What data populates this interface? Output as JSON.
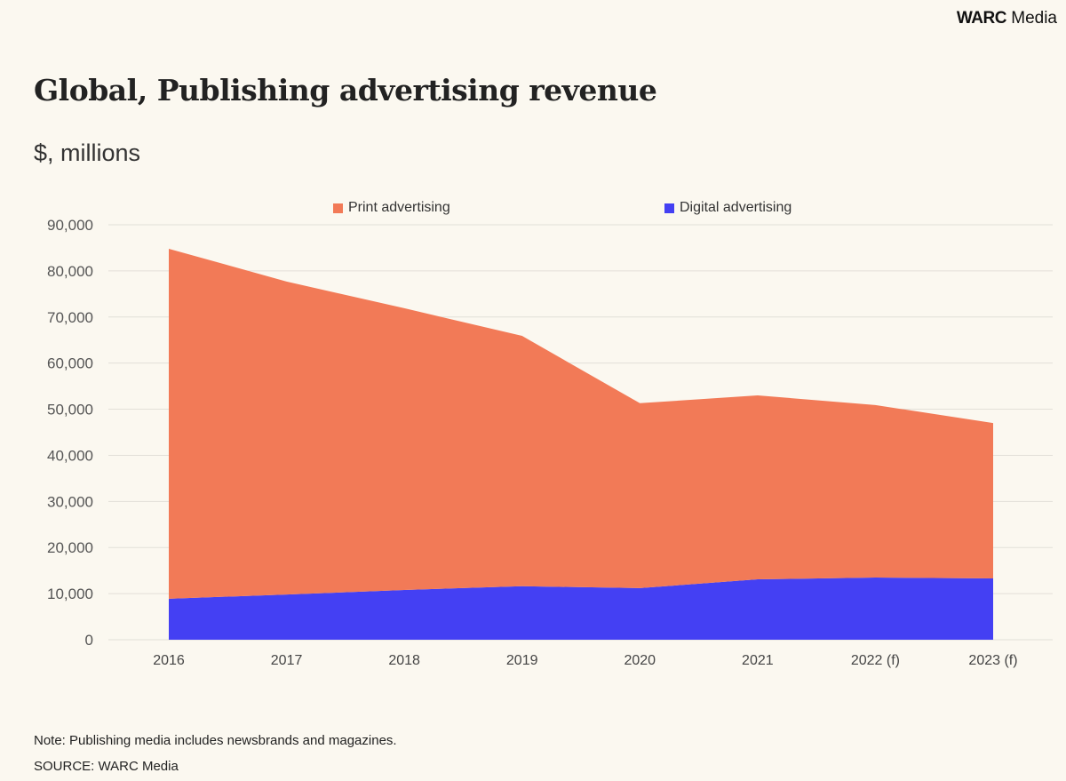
{
  "brand": {
    "bold": "WARC",
    "regular": "Media"
  },
  "header": {
    "title": "Global, Publishing advertising revenue",
    "subtitle": "$, millions"
  },
  "footer": {
    "note": "Note: Publishing media includes newsbrands and magazines.",
    "source": "SOURCE: WARC Media"
  },
  "colors": {
    "print": "#f27a57",
    "digital": "#4440f3",
    "grid": "#e2dfd8",
    "background": "#fbf8f0"
  },
  "chart_data": {
    "type": "area",
    "stacked": true,
    "title": "Global, Publishing advertising revenue",
    "ylabel": "$, millions",
    "xlabel": "",
    "categories": [
      "2016",
      "2017",
      "2018",
      "2019",
      "2020",
      "2021",
      "2022 (f)",
      "2023 (f)"
    ],
    "series": [
      {
        "name": "Digital advertising",
        "color": "#4440f3",
        "values": [
          8900,
          9800,
          10800,
          11600,
          11200,
          13100,
          13500,
          13300
        ]
      },
      {
        "name": "Print advertising",
        "color": "#f27a57",
        "values": [
          75900,
          67900,
          61100,
          54300,
          40100,
          39900,
          37400,
          33700
        ]
      }
    ],
    "legend_order": [
      "Print advertising",
      "Digital advertising"
    ],
    "legend_position": "top-center",
    "ylim": [
      0,
      90000
    ],
    "yticks": [
      0,
      10000,
      20000,
      30000,
      40000,
      50000,
      60000,
      70000,
      80000,
      90000
    ],
    "ytick_labels": [
      "0",
      "10,000",
      "20,000",
      "30,000",
      "40,000",
      "50,000",
      "60,000",
      "70,000",
      "80,000",
      "90,000"
    ],
    "grid": true
  }
}
